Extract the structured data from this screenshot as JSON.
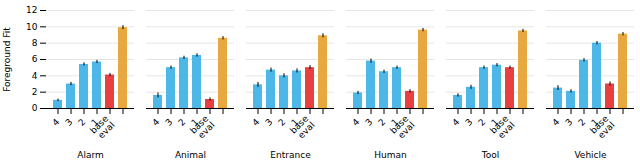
{
  "chart_data": [
    {
      "type": "bar",
      "xlabel": "Alarm",
      "ylabel": "Foreground Fit",
      "categories": [
        "4",
        "3",
        "2",
        "1",
        "base\neval",
        null
      ],
      "values": [
        1.0,
        3.0,
        5.4,
        5.7,
        4.1,
        9.9
      ],
      "errors": [
        0.15,
        0.2,
        0.2,
        0.2,
        0.2,
        0.25
      ],
      "colors": [
        "#4db8e8",
        "#4db8e8",
        "#4db8e8",
        "#4db8e8",
        "#e84040",
        "#e8a840"
      ],
      "ylim": [
        0,
        12
      ],
      "yticks": [
        0,
        2,
        4,
        6,
        8,
        10,
        12
      ],
      "grid": true
    },
    {
      "type": "bar",
      "xlabel": "Animal",
      "categories": [
        "4",
        "3",
        "2",
        "1",
        "base\neval",
        null
      ],
      "values": [
        1.6,
        5.0,
        6.2,
        6.5,
        1.1,
        8.6
      ],
      "errors": [
        0.3,
        0.2,
        0.2,
        0.2,
        0.2,
        0.2
      ],
      "colors": [
        "#4db8e8",
        "#4db8e8",
        "#4db8e8",
        "#4db8e8",
        "#e84040",
        "#e8a840"
      ],
      "ylim": [
        0,
        12
      ],
      "yticks": [
        0,
        2,
        4,
        6,
        8,
        10,
        12
      ],
      "grid": true,
      "tick_labels": "x"
    },
    {
      "type": "bar",
      "xlabel": "Entrance",
      "categories": [
        "4",
        "3",
        "2",
        "1",
        "base\neval",
        null
      ],
      "values": [
        2.9,
        4.7,
        4.0,
        4.6,
        5.0,
        8.9
      ],
      "errors": [
        0.3,
        0.25,
        0.25,
        0.25,
        0.25,
        0.25
      ],
      "colors": [
        "#4db8e8",
        "#4db8e8",
        "#4db8e8",
        "#4db8e8",
        "#e84040",
        "#e8a840"
      ],
      "ylim": [
        0,
        12
      ],
      "yticks": [
        0,
        2,
        4,
        6,
        8,
        10,
        12
      ],
      "grid": true,
      "tick_labels": "x"
    },
    {
      "type": "bar",
      "xlabel": "Human",
      "categories": [
        "4",
        "3",
        "2",
        "1",
        "base\neval",
        null
      ],
      "values": [
        1.9,
        5.8,
        4.5,
        5.0,
        2.1,
        9.6
      ],
      "errors": [
        0.2,
        0.25,
        0.2,
        0.2,
        0.2,
        0.2
      ],
      "colors": [
        "#4db8e8",
        "#4db8e8",
        "#4db8e8",
        "#4db8e8",
        "#e84040",
        "#e8a840"
      ],
      "ylim": [
        0,
        12
      ],
      "yticks": [
        0,
        2,
        4,
        6,
        8,
        10,
        12
      ],
      "grid": true,
      "tick_labels": "x"
    },
    {
      "type": "bar",
      "xlabel": "Tool",
      "categories": [
        "4",
        "3",
        "2",
        "1",
        "base\neval",
        null
      ],
      "values": [
        1.6,
        2.6,
        5.0,
        5.3,
        5.0,
        9.5
      ],
      "errors": [
        0.2,
        0.25,
        0.2,
        0.2,
        0.2,
        0.2
      ],
      "colors": [
        "#4db8e8",
        "#4db8e8",
        "#4db8e8",
        "#4db8e8",
        "#e84040",
        "#e8a840"
      ],
      "ylim": [
        0,
        12
      ],
      "yticks": [
        0,
        2,
        4,
        6,
        8,
        10,
        12
      ],
      "grid": true,
      "tick_labels": "x"
    },
    {
      "type": "bar",
      "xlabel": "Vehicle",
      "categories": [
        "4",
        "3",
        "2",
        "1",
        "base\neval",
        null
      ],
      "values": [
        2.5,
        2.1,
        5.9,
        8.0,
        3.0,
        9.1
      ],
      "errors": [
        0.3,
        0.2,
        0.2,
        0.2,
        0.25,
        0.2
      ],
      "colors": [
        "#4db8e8",
        "#4db8e8",
        "#4db8e8",
        "#4db8e8",
        "#e84040",
        "#e8a840"
      ],
      "ylim": [
        0,
        12
      ],
      "yticks": [
        0,
        2,
        4,
        6,
        8,
        10,
        12
      ],
      "grid": true,
      "tick_labels": "x"
    }
  ]
}
